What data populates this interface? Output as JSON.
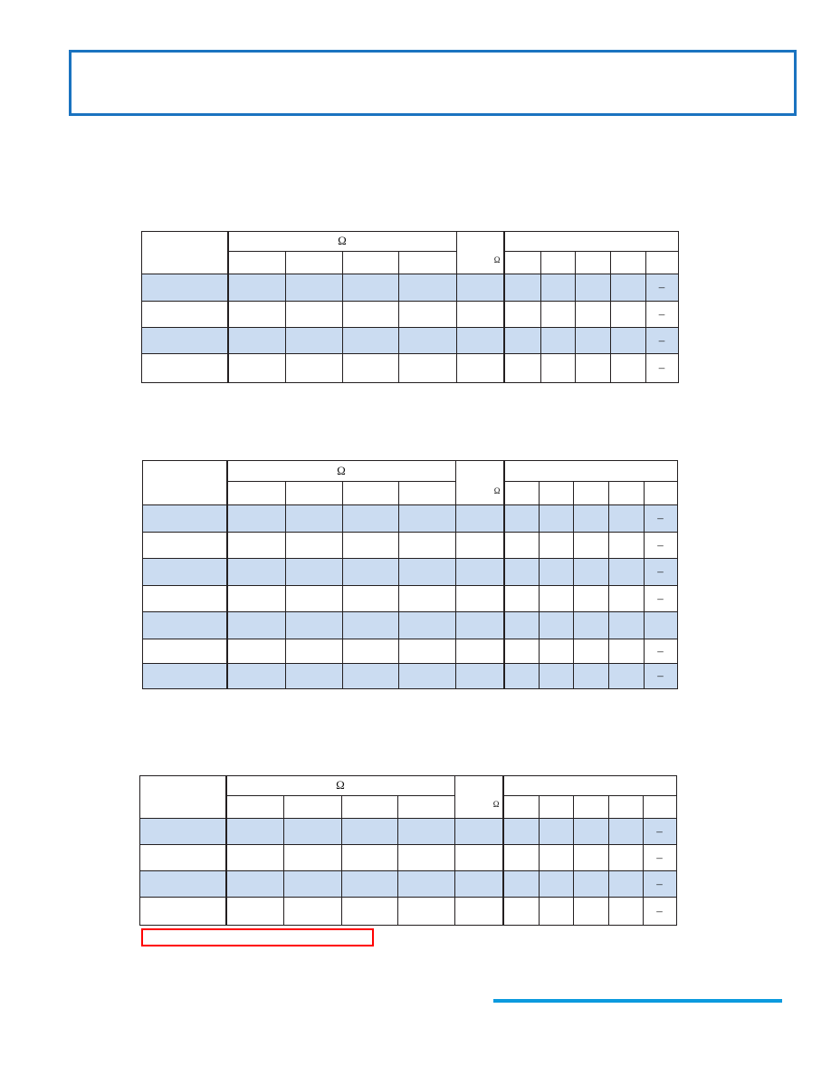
{
  "colors": {
    "title_border": "#1a73c0",
    "row_highlight": "#cbdcf1",
    "annotation_box": "#ff0000",
    "footer_rule": "#0b9ade"
  },
  "tables": [
    {
      "group_header": "Ω",
      "side_header": "Ω",
      "rows": [
        {
          "highlight": true,
          "last": "–"
        },
        {
          "highlight": false,
          "last": "–"
        },
        {
          "highlight": true,
          "last": "–"
        },
        {
          "highlight": false,
          "last": "–"
        }
      ]
    },
    {
      "group_header": "Ω",
      "side_header": "Ω",
      "rows": [
        {
          "highlight": true,
          "last": "–"
        },
        {
          "highlight": false,
          "last": "–"
        },
        {
          "highlight": true,
          "last": "–"
        },
        {
          "highlight": false,
          "last": "–"
        },
        {
          "highlight": true,
          "last": ""
        },
        {
          "highlight": false,
          "last": "–"
        },
        {
          "highlight": true,
          "last": "–"
        }
      ]
    },
    {
      "group_header": "Ω",
      "side_header": "Ω",
      "rows": [
        {
          "highlight": true,
          "last": "–"
        },
        {
          "highlight": false,
          "last": "–"
        },
        {
          "highlight": true,
          "last": "–"
        },
        {
          "highlight": false,
          "last": "–"
        }
      ]
    }
  ]
}
